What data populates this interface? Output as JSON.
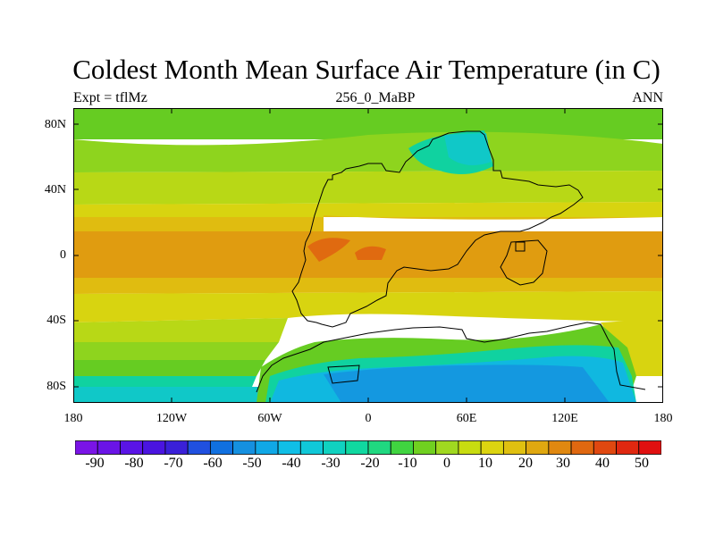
{
  "title": "Coldest Month Mean Surface Air Temperature (in C)",
  "subtitle_left": "Expt = tflMz",
  "subtitle_center": "256_0_MaBP",
  "subtitle_right": "ANN",
  "lat_labels": [
    "80N",
    "40N",
    "0",
    "40S",
    "80S"
  ],
  "lon_labels": [
    "180",
    "120W",
    "60W",
    "0",
    "60E",
    "120E",
    "180"
  ],
  "colorbar_labels": [
    "-90",
    "-80",
    "-70",
    "-60",
    "-50",
    "-40",
    "-30",
    "-20",
    "-10",
    "0",
    "10",
    "20",
    "30",
    "40",
    "50"
  ],
  "colorbar_colors": [
    "#7a14e6",
    "#6a14e6",
    "#5a14e6",
    "#4a14e0",
    "#3a20d8",
    "#2050e0",
    "#1070e0",
    "#1590e0",
    "#10a8e6",
    "#10bfe6",
    "#10c8d8",
    "#10d2c0",
    "#10d8a0",
    "#20d880",
    "#40d440",
    "#70d020",
    "#a0d820",
    "#c8dc10",
    "#dcd410",
    "#e0c010",
    "#e0a810",
    "#e08810",
    "#e06810",
    "#e04810",
    "#e02810",
    "#e01010"
  ],
  "map_colors": {
    "polar_green": "#66cc22",
    "mid_green": "#8ed41e",
    "yellowgreen": "#b8d816",
    "yellow": "#d8d410",
    "gold": "#e0bc10",
    "orange": "#e09c10",
    "deep_orange": "#e06a10",
    "aqua": "#10d2a0",
    "teal": "#10c8c8",
    "cyan": "#10b8e0",
    "blue": "#1498e0"
  }
}
